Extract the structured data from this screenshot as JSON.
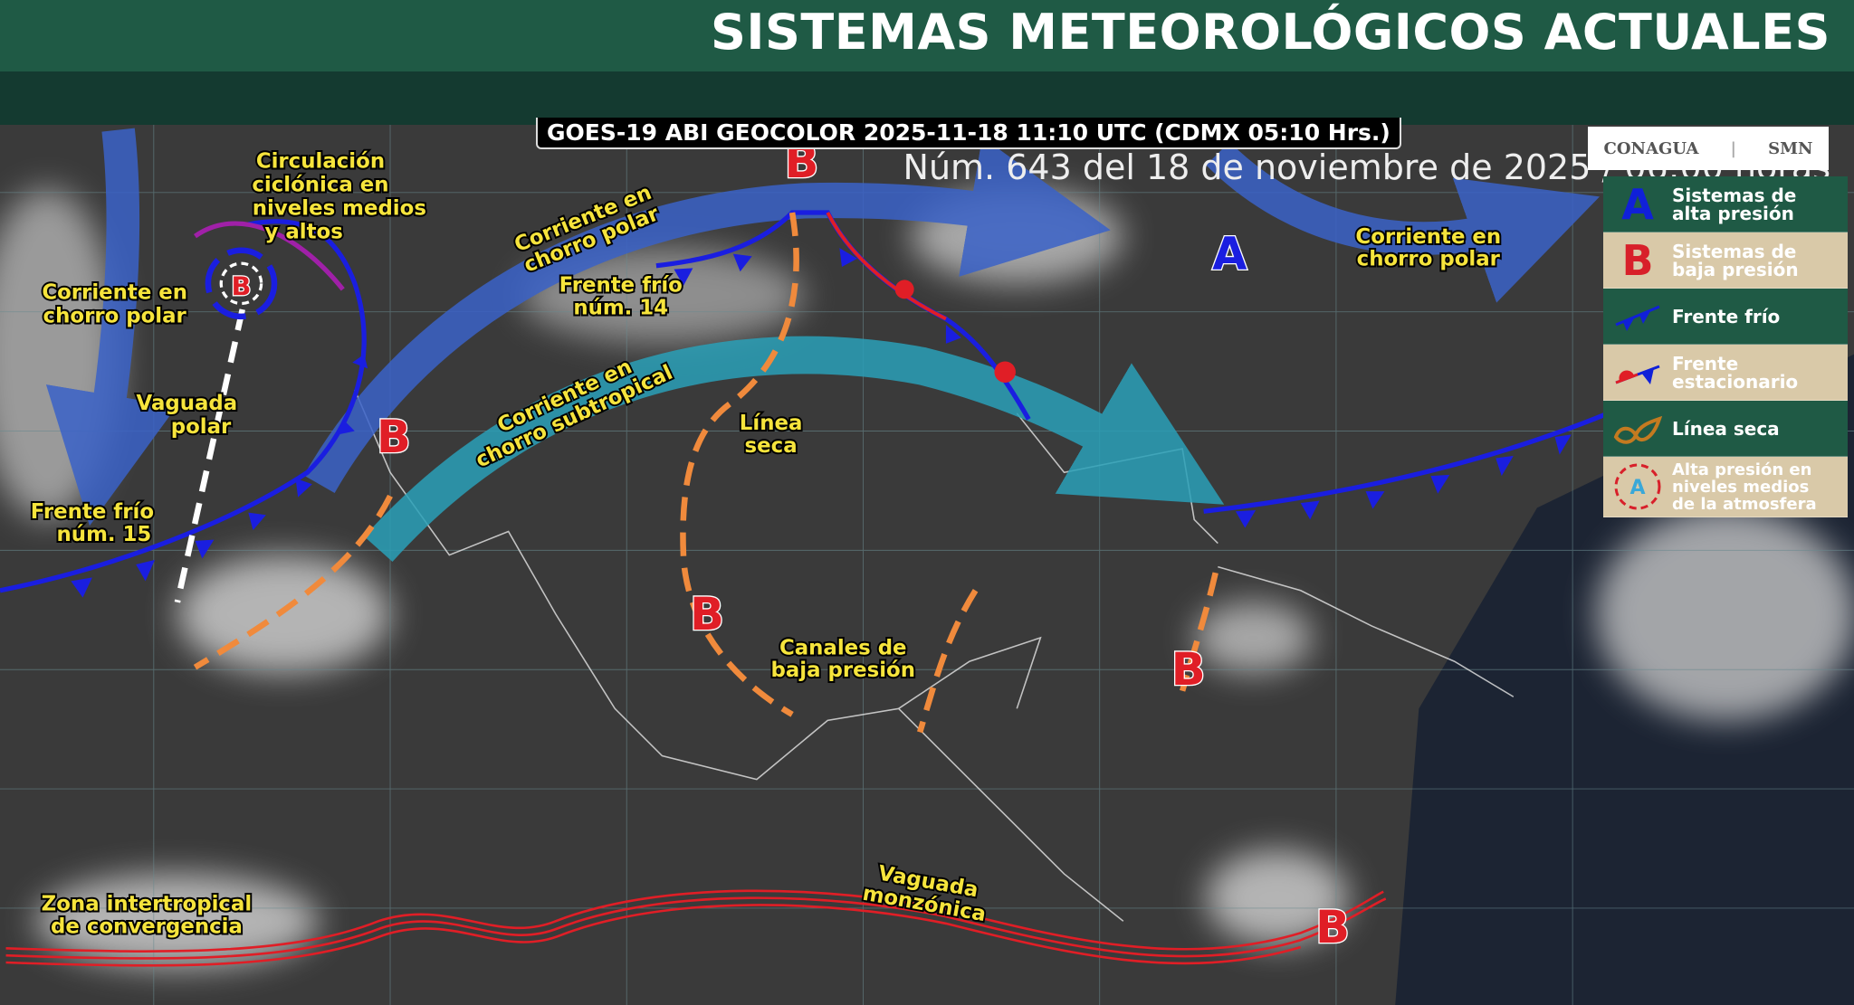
{
  "header": {
    "title": "SISTEMAS METEOROLÓGICOS ACTUALES",
    "subtitle": "Núm. 643 del 18 de noviembre de 2025 / 06:00 horas"
  },
  "satellite_caption": "GOES-19 ABI GEOCOLOR 2025-11-18 11:10 UTC (CDMX  05:10 Hrs.)",
  "logos": {
    "conagua": "CONAGUA",
    "smn": "SMN"
  },
  "legend": [
    {
      "symbol": "A",
      "label_1": "Sistemas de",
      "label_2": "alta presión",
      "color": "#1020d8"
    },
    {
      "symbol": "B",
      "label_1": "Sistemas de",
      "label_2": "baja presión",
      "color": "#d8202a"
    },
    {
      "symbol": "cold-front",
      "label_1": "Frente frío",
      "label_2": ""
    },
    {
      "symbol": "stationary-front",
      "label_1": "Frente",
      "label_2": "estacionario"
    },
    {
      "symbol": "dry-line",
      "label_1": "Línea seca",
      "label_2": ""
    },
    {
      "symbol": "A",
      "label_1": "Alta presión en",
      "label_2": "niveles medios",
      "label_3": "de la atmosfera",
      "color": "#3aa8d8"
    }
  ],
  "map_labels": {
    "circulacion": [
      "Circulación",
      "ciclónica en",
      "niveles medios",
      "y altos"
    ],
    "chorro_polar_w": [
      "Corriente en",
      "chorro polar"
    ],
    "vaguada_polar": [
      "Vaguada",
      "polar"
    ],
    "frente_15": [
      "Frente frío",
      "núm. 15"
    ],
    "chorro_polar_c": [
      "Corriente en",
      "chorro polar"
    ],
    "frente_14": [
      "Frente frío",
      "núm. 14"
    ],
    "chorro_subtropical": [
      "Corriente en",
      "chorro subtropical"
    ],
    "linea_seca": [
      "Línea",
      "seca"
    ],
    "canales": [
      "Canales de",
      "baja presión"
    ],
    "chorro_polar_e": [
      "Corriente en",
      "chorro polar"
    ],
    "zic": [
      "Zona intertropical",
      "de convergencia"
    ],
    "vaguada_monzonica": [
      "Vaguada",
      "monzónica"
    ]
  },
  "pressure_centers": {
    "high": "A",
    "low": "B"
  },
  "colors": {
    "high": "#1020d8",
    "low": "#e01e26",
    "cold_front": "#1a1ee0",
    "dry_line": "#f08a3c",
    "jet_polar": "#3a62c8",
    "jet_subtropical": "#2aa0b8",
    "itcz": "#e01e26"
  }
}
